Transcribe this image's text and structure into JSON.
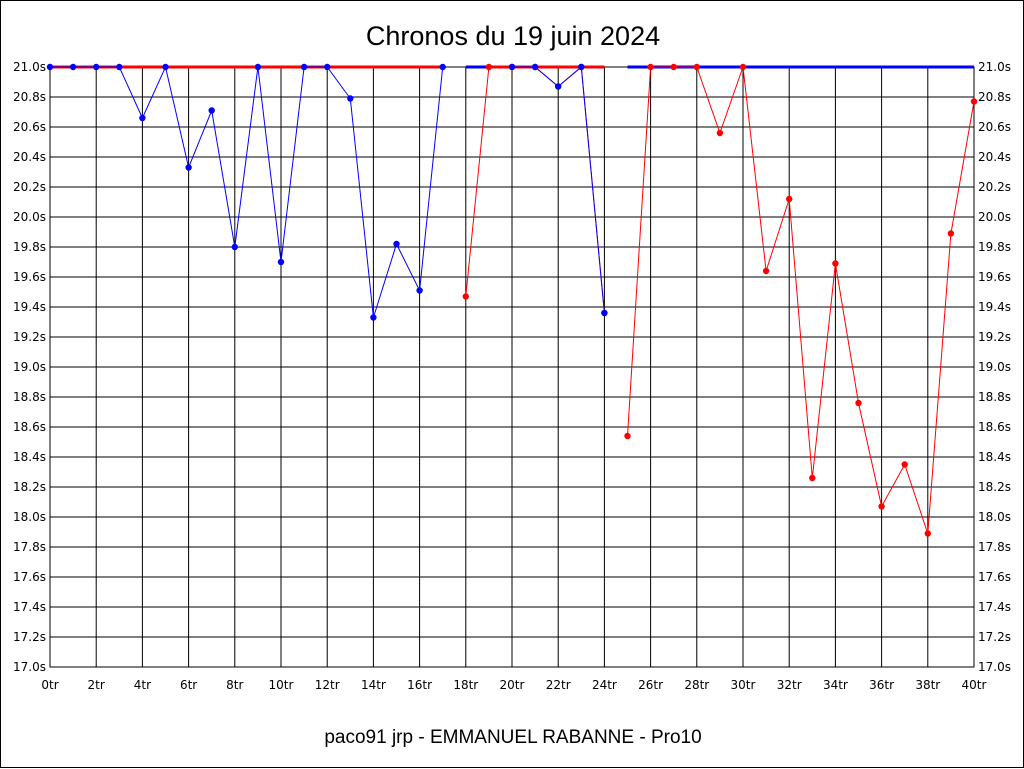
{
  "chart_data": {
    "type": "line",
    "title": "Chronos du 19 juin 2024",
    "footer": "paco91 jrp - EMMANUEL RABANNE - Pro10",
    "xlabel": "",
    "ylabel": "",
    "xlim": [
      0,
      40
    ],
    "ylim": [
      17.0,
      21.0
    ],
    "x_tick_labels": [
      "0tr",
      "2tr",
      "4tr",
      "6tr",
      "8tr",
      "10tr",
      "12tr",
      "14tr",
      "16tr",
      "18tr",
      "20tr",
      "22tr",
      "24tr",
      "26tr",
      "28tr",
      "30tr",
      "32tr",
      "34tr",
      "36tr",
      "38tr",
      "40tr"
    ],
    "y_tick_labels": [
      "21.0s",
      "20.8s",
      "20.6s",
      "20.4s",
      "20.2s",
      "20.0s",
      "19.8s",
      "19.6s",
      "19.4s",
      "19.2s",
      "19.0s",
      "18.8s",
      "18.6s",
      "18.4s",
      "18.2s",
      "18.0s",
      "17.8s",
      "17.6s",
      "17.4s",
      "17.2s",
      "17.0s"
    ],
    "y_axis_both_sides": true,
    "grid": true,
    "series": [
      {
        "color": "#0000ff",
        "x": [
          0,
          1,
          2,
          3,
          4,
          5,
          6,
          7,
          8,
          9,
          10,
          11,
          12,
          13,
          14,
          15,
          16,
          17
        ],
        "y": [
          21.0,
          21.0,
          21.0,
          21.0,
          20.66,
          21.0,
          20.33,
          20.71,
          19.8,
          21.0,
          19.7,
          21.0,
          21.0,
          20.79,
          19.33,
          19.82,
          19.51,
          21.0
        ]
      },
      {
        "color": "#ff0000",
        "x": [
          18,
          19,
          20,
          21,
          22,
          23,
          24
        ],
        "y": [
          19.47,
          21.0,
          21.0,
          21.0,
          20.87,
          21.0,
          19.36
        ]
      },
      {
        "color": "#0000ff",
        "x": [
          20,
          21,
          22,
          23,
          24
        ],
        "y": [
          21.0,
          21.0,
          20.87,
          21.0,
          19.36
        ]
      },
      {
        "color": "#ff0000",
        "x": [
          25,
          26,
          27,
          28,
          29,
          30,
          31,
          32,
          33,
          34,
          35,
          36,
          37,
          38,
          39,
          40
        ],
        "y": [
          18.54,
          21.0,
          21.0,
          21.0,
          20.56,
          21.0,
          19.64,
          20.12,
          18.26,
          19.69,
          18.76,
          18.07,
          18.35,
          17.89,
          19.89,
          20.77
        ]
      }
    ],
    "reference_bars": [
      {
        "color": "#ff0000",
        "x_start": 0,
        "x_end": 17,
        "y": 21.0
      },
      {
        "color": "#0000ff",
        "x_start": 18,
        "x_end": 24,
        "y": 21.0
      },
      {
        "color": "#ff0000",
        "x_start": 19,
        "x_end": 24,
        "y": 21.0
      },
      {
        "color": "#0000ff",
        "x_start": 25,
        "x_end": 40,
        "y": 21.0
      }
    ]
  }
}
